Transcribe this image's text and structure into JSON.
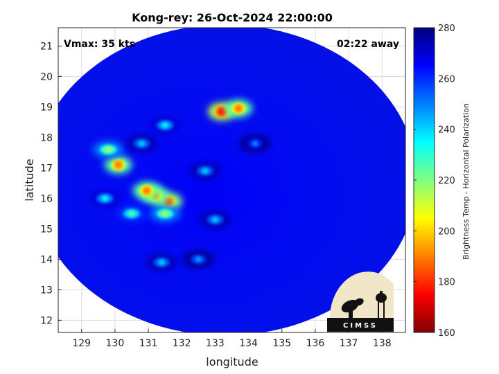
{
  "chart_data": {
    "type": "heatmap",
    "title": "Kong-rey: 26-Oct-2024 22:00:00",
    "xlabel": "longitude",
    "ylabel": "latitude",
    "xlim": [
      128.3,
      138.7
    ],
    "ylim": [
      11.6,
      21.6
    ],
    "xticks": [
      129,
      130,
      131,
      132,
      133,
      134,
      135,
      136,
      137,
      138
    ],
    "yticks": [
      12,
      13,
      14,
      15,
      16,
      17,
      18,
      19,
      20,
      21
    ],
    "grid": true,
    "annotations": [
      {
        "text": "Vmax: 35 kts",
        "position": "top-left"
      },
      {
        "text": "02:22 away",
        "position": "top-right"
      }
    ],
    "colorbar": {
      "label": "Brightness Temp - Horizontal Polarization",
      "range": [
        160,
        280
      ],
      "ticks": [
        160,
        180,
        200,
        220,
        240,
        260,
        280
      ],
      "colormap": "jet",
      "position": "right"
    },
    "swath": {
      "center": [
        133.3,
        16.6
      ],
      "radius_lon": 5.75,
      "radius_lat": 5.1,
      "background_value": 266
    },
    "features": [
      {
        "lon": 131.6,
        "lat": 15.9,
        "value": 185
      },
      {
        "lon": 131.2,
        "lat": 16.1,
        "value": 190
      },
      {
        "lon": 130.95,
        "lat": 16.25,
        "value": 190
      },
      {
        "lon": 130.1,
        "lat": 17.1,
        "value": 190
      },
      {
        "lon": 133.2,
        "lat": 18.85,
        "value": 178
      },
      {
        "lon": 133.7,
        "lat": 18.95,
        "value": 190
      },
      {
        "lon": 131.5,
        "lat": 15.5,
        "value": 215
      },
      {
        "lon": 130.5,
        "lat": 15.5,
        "value": 225
      },
      {
        "lon": 129.8,
        "lat": 17.6,
        "value": 215
      },
      {
        "lon": 129.7,
        "lat": 16.0,
        "value": 235
      },
      {
        "lon": 130.8,
        "lat": 17.8,
        "value": 240
      },
      {
        "lon": 131.5,
        "lat": 18.4,
        "value": 235
      },
      {
        "lon": 132.7,
        "lat": 16.9,
        "value": 240
      },
      {
        "lon": 133.0,
        "lat": 15.3,
        "value": 240
      },
      {
        "lon": 131.4,
        "lat": 13.9,
        "value": 240
      },
      {
        "lon": 132.5,
        "lat": 14.0,
        "value": 245
      },
      {
        "lon": 134.2,
        "lat": 17.8,
        "value": 248
      }
    ],
    "logo": {
      "text": "CIMSS",
      "position": "bottom-right"
    }
  }
}
